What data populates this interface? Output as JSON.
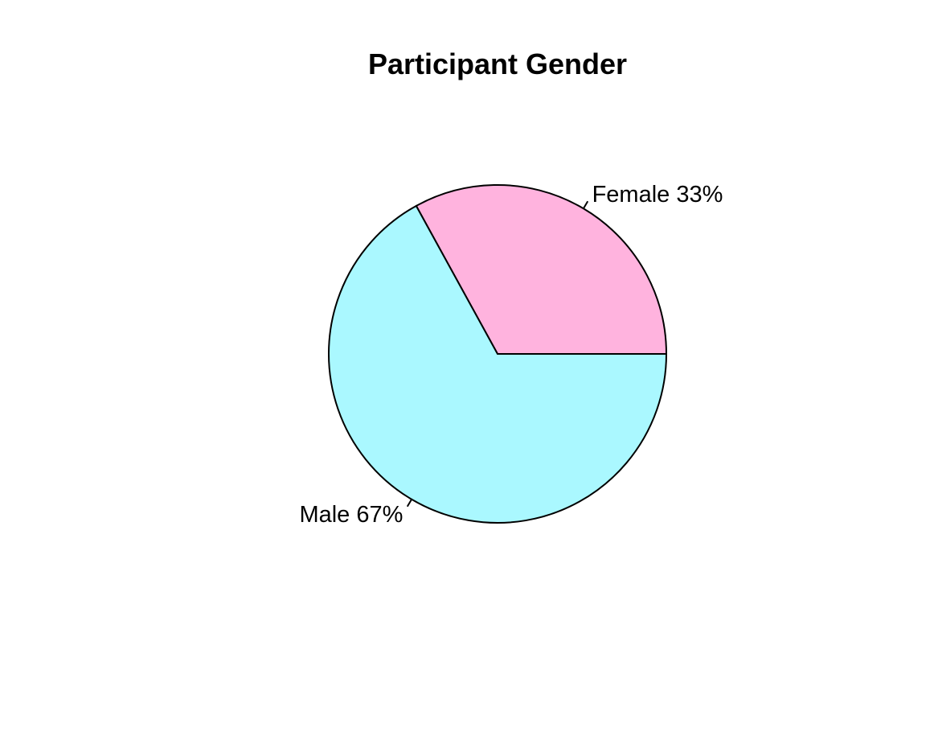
{
  "chart_data": {
    "type": "pie",
    "title": "Participant Gender",
    "start_angle_deg": 0,
    "direction": "counterclockwise",
    "slices": [
      {
        "label": "Female",
        "percent_label": "33%",
        "value": 33,
        "color": "#FFB3DE",
        "label_text": "Female 33%"
      },
      {
        "label": "Male",
        "percent_label": "67%",
        "value": 67,
        "color": "#AAF8FF",
        "label_text": "Male 67%"
      }
    ],
    "legend": "none"
  }
}
